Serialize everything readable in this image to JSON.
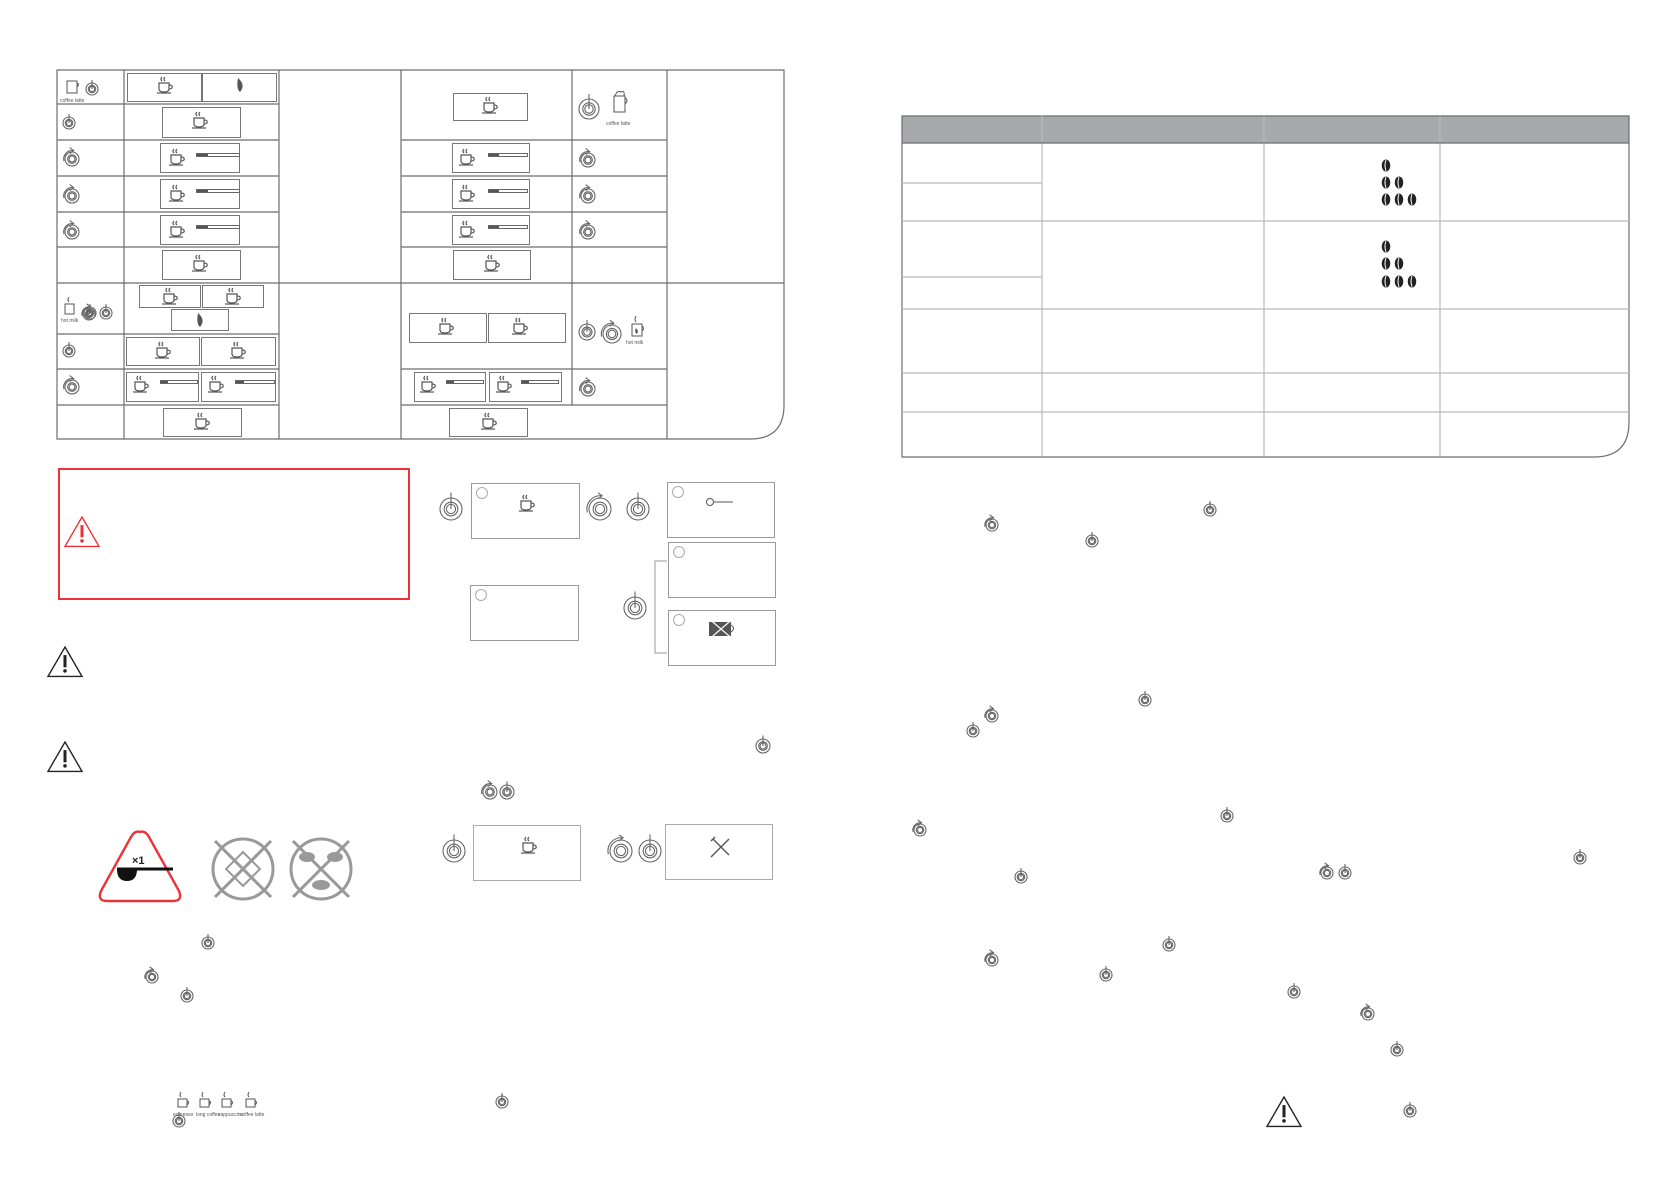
{
  "left_table": {
    "coffee_latte_label": "coffee latte",
    "hot_milk_label": "hot milk"
  },
  "right_table": {
    "header_color": "#a7a9ac",
    "strength_levels": [
      1,
      2,
      3
    ]
  },
  "warning_box": {
    "border_color": "#ed3237"
  },
  "portion_icon": {
    "label": "×1"
  },
  "drink_icons": {
    "labels": [
      "espresso",
      "long coffee",
      "cappuccino",
      "coffee latte"
    ]
  },
  "icons": {
    "push_dial": "push-dial-icon",
    "rotate_dial": "rotate-dial-icon",
    "warning": "warning-triangle-icon",
    "cup": "cup-icon",
    "settings": "wrench-screwdriver-icon",
    "descaling": "descaling-icon",
    "no_cup": "no-cup-icon",
    "bean": "coffee-bean-icon"
  }
}
